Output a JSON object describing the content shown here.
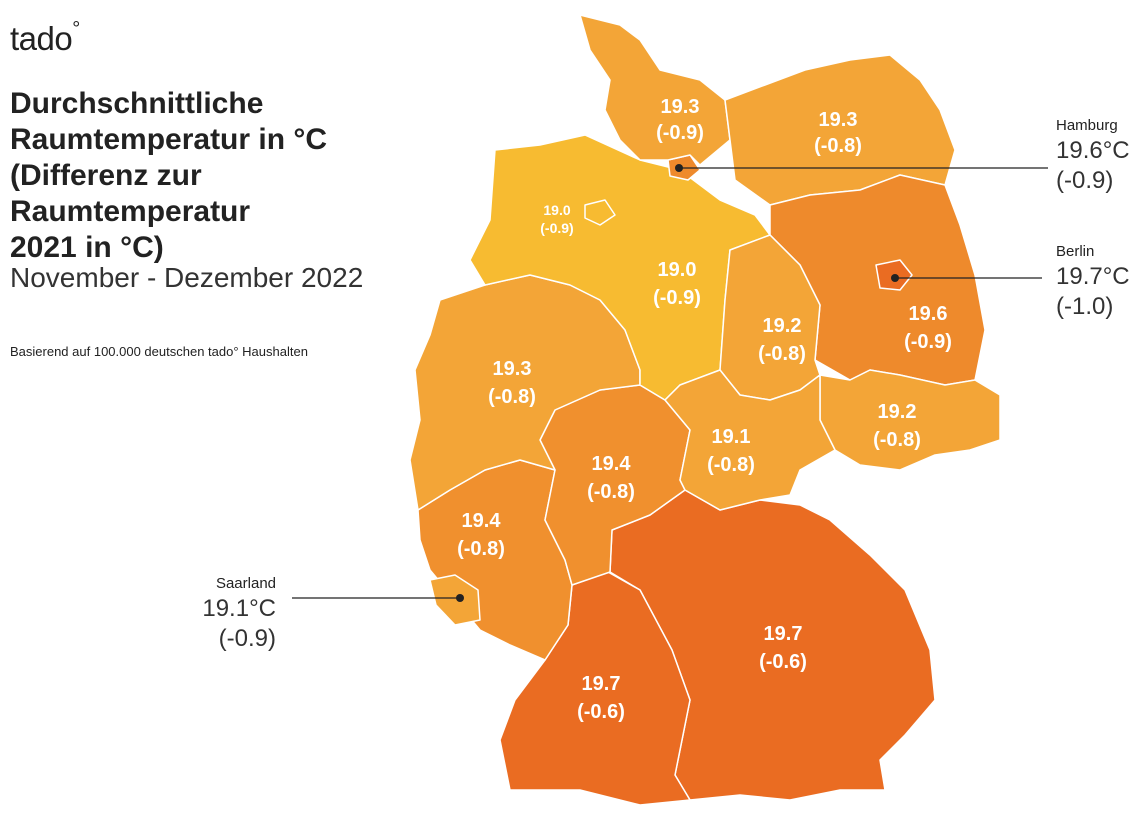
{
  "brand": {
    "name": "tado",
    "mark": "°"
  },
  "title_lines": [
    "Durchschnittliche",
    "Raumtemperatur in °C",
    "(Differenz zur",
    "Raumtemperatur",
    "2021 in °C)"
  ],
  "period": "November - Dezember 2022",
  "basis": "Basierend auf 100.000 deutschen tado° Haushalten",
  "colors": {
    "level_19_0": "#f7bb31",
    "level_19_1_19_3": "#f3a537",
    "level_19_4": "#f0902e",
    "level_19_6": "#ee8a2c",
    "level_19_7": "#ea6c22"
  },
  "regions": {
    "schleswig_holstein": {
      "temp": "19.3",
      "diff": "(-0.9)"
    },
    "mecklenburg_vorpommern": {
      "temp": "19.3",
      "diff": "(-0.8)"
    },
    "bremen": {
      "temp": "19.0",
      "diff": "(-0.9)"
    },
    "niedersachsen": {
      "temp": "19.0",
      "diff": "(-0.9)"
    },
    "sachsen_anhalt": {
      "temp": "19.2",
      "diff": "(-0.8)"
    },
    "brandenburg": {
      "temp": "19.6",
      "diff": "(-0.9)"
    },
    "nordrhein_westfalen": {
      "temp": "19.3",
      "diff": "(-0.8)"
    },
    "sachsen": {
      "temp": "19.2",
      "diff": "(-0.8)"
    },
    "thueringen": {
      "temp": "19.1",
      "diff": "(-0.8)"
    },
    "hessen": {
      "temp": "19.4",
      "diff": "(-0.8)"
    },
    "rheinland_pfalz": {
      "temp": "19.4",
      "diff": "(-0.8)"
    },
    "bayern": {
      "temp": "19.7",
      "diff": "(-0.6)"
    },
    "baden_wuerttemberg": {
      "temp": "19.7",
      "diff": "(-0.6)"
    }
  },
  "callouts": {
    "hamburg": {
      "name": "Hamburg",
      "temp": "19.6°C",
      "diff": "(-0.9)"
    },
    "berlin": {
      "name": "Berlin",
      "temp": "19.7°C",
      "diff": "(-1.0)"
    },
    "saarland": {
      "name": "Saarland",
      "temp": "19.1°C",
      "diff": "(-0.9)"
    }
  }
}
